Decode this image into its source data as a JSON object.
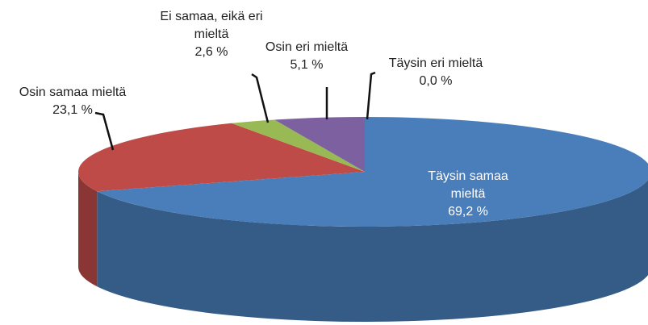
{
  "chart_data": {
    "type": "pie3d",
    "categories": [
      "Täysin samaa mieltä",
      "Osin samaa mieltä",
      "Ei samaa, eikä eri mieltä",
      "Osin eri mieltä",
      "Täysin eri mieltä"
    ],
    "values": [
      69.2,
      23.1,
      2.6,
      5.1,
      0.0
    ],
    "value_labels": [
      "69,2 %",
      "23,1 %",
      "2,6 %",
      "5,1 %",
      "0,0 %"
    ],
    "colors": [
      "#4a7ebb",
      "#be4b48",
      "#98b954",
      "#7d60a0",
      "#46aac5"
    ]
  }
}
